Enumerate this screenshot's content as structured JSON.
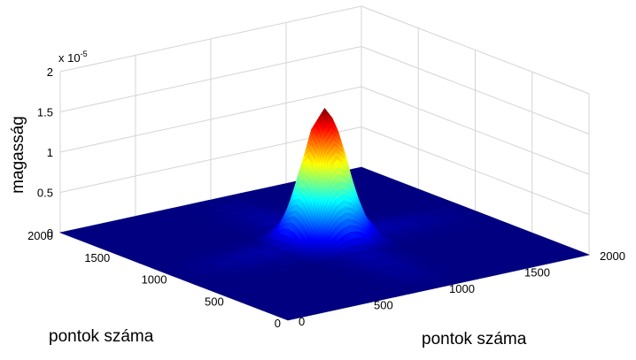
{
  "chart_data": {
    "type": "surface",
    "zlabel": "magasság",
    "xlabel": "pontok száma",
    "ylabel": "pontok száma",
    "zscale": {
      "text": "x 10",
      "exponent": "-5"
    },
    "colormap": "jet",
    "grid": true,
    "xlim": [
      0,
      2000
    ],
    "ylim": [
      0,
      2000
    ],
    "zlim": [
      0,
      2
    ],
    "xticks": [
      0,
      500,
      1000,
      1500,
      2000
    ],
    "yticks": [
      0,
      500,
      1000,
      1500,
      2000
    ],
    "zticks": [
      0,
      0.5,
      1,
      1.5,
      2
    ],
    "x": [
      0,
      700,
      800,
      850,
      900,
      950,
      1000,
      1050,
      1100,
      1150,
      1200,
      1300,
      2000
    ],
    "y": [
      0,
      700,
      800,
      850,
      900,
      950,
      1000,
      1050,
      1100,
      1150,
      1200,
      1300,
      2000
    ],
    "z": [
      [
        0,
        0,
        0,
        0,
        0,
        0,
        0,
        0,
        0,
        0,
        0,
        0,
        0
      ],
      [
        0,
        0,
        0.02,
        0.03,
        0.05,
        0.07,
        0.07,
        0.07,
        0.05,
        0.03,
        0.02,
        0,
        0
      ],
      [
        0,
        0.02,
        0.1,
        0.19,
        0.3,
        0.38,
        0.42,
        0.38,
        0.3,
        0.19,
        0.1,
        0.02,
        0
      ],
      [
        0,
        0.03,
        0.19,
        0.35,
        0.54,
        0.71,
        0.77,
        0.71,
        0.54,
        0.35,
        0.19,
        0.03,
        0
      ],
      [
        0,
        0.05,
        0.3,
        0.54,
        0.84,
        1.09,
        1.19,
        1.09,
        0.84,
        0.54,
        0.3,
        0.05,
        0
      ],
      [
        0,
        0.07,
        0.38,
        0.71,
        1.09,
        1.41,
        1.54,
        1.41,
        1.09,
        0.71,
        0.38,
        0.07,
        0
      ],
      [
        0,
        0.07,
        0.42,
        0.77,
        1.19,
        1.54,
        1.68,
        1.54,
        1.19,
        0.77,
        0.42,
        0.07,
        0
      ],
      [
        0,
        0.07,
        0.38,
        0.71,
        1.09,
        1.41,
        1.54,
        1.41,
        1.09,
        0.71,
        0.38,
        0.07,
        0
      ],
      [
        0,
        0.05,
        0.3,
        0.54,
        0.84,
        1.09,
        1.19,
        1.09,
        0.84,
        0.54,
        0.3,
        0.05,
        0
      ],
      [
        0,
        0.03,
        0.19,
        0.35,
        0.54,
        0.71,
        0.77,
        0.71,
        0.54,
        0.35,
        0.19,
        0.03,
        0
      ],
      [
        0,
        0.02,
        0.1,
        0.19,
        0.3,
        0.38,
        0.42,
        0.38,
        0.3,
        0.19,
        0.1,
        0.02,
        0
      ],
      [
        0,
        0,
        0.02,
        0.03,
        0.05,
        0.07,
        0.07,
        0.07,
        0.05,
        0.03,
        0.02,
        0,
        0
      ],
      [
        0,
        0,
        0,
        0,
        0,
        0,
        0,
        0,
        0,
        0,
        0,
        0,
        0
      ]
    ]
  }
}
